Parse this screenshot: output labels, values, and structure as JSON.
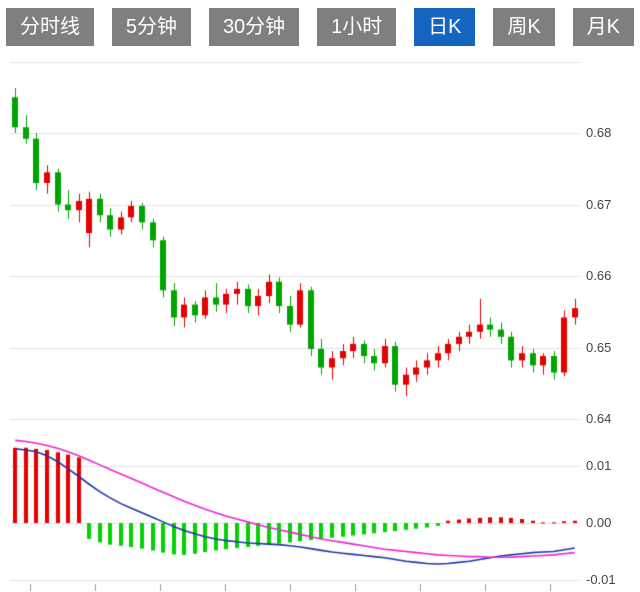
{
  "tabs": {
    "items": [
      {
        "label": "分时线"
      },
      {
        "label": "5分钟"
      },
      {
        "label": "30分钟"
      },
      {
        "label": "1小时"
      },
      {
        "label": "日K"
      },
      {
        "label": "周K"
      },
      {
        "label": "月K"
      }
    ],
    "active_index": 4,
    "active_color": "#1565c0",
    "inactive_color": "#7f7f7f",
    "text_color": "#ffffff"
  },
  "chart_data": {
    "type": "candlestick",
    "title": "",
    "xlabel": "",
    "ylabel": "",
    "legend": "none",
    "grid": "on",
    "price_axis": {
      "labels": [
        "0.68",
        "0.67",
        "0.66",
        "0.65",
        "0.64"
      ],
      "tick_values": [
        0.68,
        0.67,
        0.66,
        0.65,
        0.64
      ],
      "grid_values": [
        0.69,
        0.68,
        0.67,
        0.66,
        0.65,
        0.64
      ],
      "min": 0.642,
      "max": 0.69
    },
    "macd_axis": {
      "labels": [
        "0.01",
        "0.00",
        "-0.01"
      ],
      "tick_values": [
        0.01,
        0.0,
        -0.01
      ],
      "grid_values": [
        0.01,
        0.0,
        -0.01
      ],
      "min": -0.012,
      "max": 0.016
    },
    "x_axis": {
      "tick_count": 9,
      "labels": []
    },
    "colors": {
      "up": "#e60000",
      "down": "#00a400",
      "macd_up": "#e60000",
      "macd_down": "#00d300",
      "dif": "#2433a6",
      "dea": "#ea25d5",
      "grid": "#e2e2e2",
      "axis_text": "#444444",
      "tick": "#999999"
    },
    "candles": [
      [
        0.685,
        0.6863,
        0.68,
        0.6808
      ],
      [
        0.6808,
        0.6825,
        0.6785,
        0.6792
      ],
      [
        0.6792,
        0.68,
        0.672,
        0.673
      ],
      [
        0.673,
        0.6755,
        0.6715,
        0.6745
      ],
      [
        0.6745,
        0.675,
        0.669,
        0.67
      ],
      [
        0.67,
        0.672,
        0.668,
        0.6692
      ],
      [
        0.6692,
        0.6715,
        0.6675,
        0.6705
      ],
      [
        0.666,
        0.6718,
        0.664,
        0.6708
      ],
      [
        0.6708,
        0.6715,
        0.6675,
        0.6685
      ],
      [
        0.6685,
        0.6695,
        0.6655,
        0.6665
      ],
      [
        0.6665,
        0.669,
        0.6658,
        0.6682
      ],
      [
        0.6682,
        0.6705,
        0.6675,
        0.6698
      ],
      [
        0.6698,
        0.6702,
        0.6665,
        0.6675
      ],
      [
        0.6675,
        0.668,
        0.664,
        0.665
      ],
      [
        0.665,
        0.6655,
        0.657,
        0.658
      ],
      [
        0.658,
        0.659,
        0.653,
        0.6542
      ],
      [
        0.6542,
        0.657,
        0.6528,
        0.656
      ],
      [
        0.656,
        0.6565,
        0.6535,
        0.6545
      ],
      [
        0.6545,
        0.658,
        0.654,
        0.657
      ],
      [
        0.657,
        0.659,
        0.655,
        0.656
      ],
      [
        0.656,
        0.6582,
        0.6548,
        0.6575
      ],
      [
        0.6575,
        0.6592,
        0.656,
        0.6582
      ],
      [
        0.6582,
        0.6588,
        0.6548,
        0.6558
      ],
      [
        0.6558,
        0.6582,
        0.6545,
        0.6572
      ],
      [
        0.6572,
        0.6602,
        0.6562,
        0.6592
      ],
      [
        0.6592,
        0.6598,
        0.6548,
        0.6558
      ],
      [
        0.6558,
        0.6572,
        0.6522,
        0.6532
      ],
      [
        0.6532,
        0.659,
        0.6528,
        0.658
      ],
      [
        0.658,
        0.6585,
        0.6488,
        0.6498
      ],
      [
        0.6498,
        0.6512,
        0.6462,
        0.6472
      ],
      [
        0.6472,
        0.6495,
        0.6455,
        0.6485
      ],
      [
        0.6485,
        0.6505,
        0.6475,
        0.6495
      ],
      [
        0.6495,
        0.6515,
        0.6485,
        0.6505
      ],
      [
        0.6505,
        0.651,
        0.6478,
        0.6488
      ],
      [
        0.6488,
        0.6498,
        0.6468,
        0.6478
      ],
      [
        0.6478,
        0.6512,
        0.6472,
        0.6502
      ],
      [
        0.6502,
        0.6508,
        0.6438,
        0.6448
      ],
      [
        0.6448,
        0.6472,
        0.6432,
        0.6462
      ],
      [
        0.6462,
        0.6482,
        0.6452,
        0.6472
      ],
      [
        0.6472,
        0.6492,
        0.6462,
        0.6482
      ],
      [
        0.6482,
        0.6502,
        0.6472,
        0.6492
      ],
      [
        0.6492,
        0.6512,
        0.6482,
        0.6505
      ],
      [
        0.6505,
        0.6522,
        0.6495,
        0.6515
      ],
      [
        0.6515,
        0.6532,
        0.6505,
        0.6522
      ],
      [
        0.6522,
        0.6568,
        0.6512,
        0.6532
      ],
      [
        0.6532,
        0.6542,
        0.6515,
        0.6525
      ],
      [
        0.6525,
        0.6535,
        0.6505,
        0.6515
      ],
      [
        0.6515,
        0.6522,
        0.6472,
        0.6482
      ],
      [
        0.6482,
        0.6502,
        0.6472,
        0.6492
      ],
      [
        0.6492,
        0.6498,
        0.6465,
        0.6475
      ],
      [
        0.6475,
        0.6492,
        0.6462,
        0.6488
      ],
      [
        0.6488,
        0.6495,
        0.6455,
        0.6465
      ],
      [
        0.6465,
        0.6552,
        0.646,
        0.6542
      ],
      [
        0.6542,
        0.6568,
        0.6532,
        0.6555
      ]
    ],
    "macd": {
      "histogram": [
        0.0132,
        0.0132,
        0.013,
        0.0128,
        0.0124,
        0.012,
        0.0115,
        -0.0028,
        -0.0034,
        -0.0038,
        -0.004,
        -0.0042,
        -0.0045,
        -0.0048,
        -0.0052,
        -0.0055,
        -0.0056,
        -0.0054,
        -0.0051,
        -0.0048,
        -0.0046,
        -0.0044,
        -0.0042,
        -0.004,
        -0.0038,
        -0.0036,
        -0.0034,
        -0.0032,
        -0.003,
        -0.0028,
        -0.0026,
        -0.0024,
        -0.0022,
        -0.002,
        -0.0018,
        -0.0016,
        -0.0014,
        -0.0012,
        -0.001,
        -0.0008,
        -0.0005,
        0.0004,
        0.0006,
        0.0008,
        0.0009,
        0.001,
        0.001,
        0.0009,
        0.0007,
        0.0004,
        0.0001,
        0.0001,
        0.0003,
        0.0004
      ],
      "dif": [
        0.013,
        0.0128,
        0.0125,
        0.0118,
        0.0108,
        0.0095,
        0.0082,
        0.0068,
        0.0055,
        0.0044,
        0.0034,
        0.0026,
        0.0018,
        0.001,
        0.0002,
        -0.0006,
        -0.0013,
        -0.0019,
        -0.0024,
        -0.0028,
        -0.0031,
        -0.0033,
        -0.0035,
        -0.0036,
        -0.0037,
        -0.0038,
        -0.004,
        -0.0042,
        -0.0045,
        -0.0048,
        -0.0051,
        -0.0053,
        -0.0055,
        -0.0057,
        -0.0059,
        -0.0061,
        -0.0064,
        -0.0067,
        -0.0069,
        -0.0071,
        -0.0072,
        -0.0071,
        -0.0069,
        -0.0067,
        -0.0064,
        -0.0061,
        -0.0058,
        -0.0056,
        -0.0054,
        -0.0052,
        -0.0051,
        -0.005,
        -0.0047,
        -0.0044
      ],
      "dea": [
        0.0145,
        0.0143,
        0.014,
        0.0136,
        0.0131,
        0.0125,
        0.0118,
        0.011,
        0.0102,
        0.0094,
        0.0086,
        0.0078,
        0.007,
        0.0062,
        0.0054,
        0.0046,
        0.0038,
        0.0031,
        0.0024,
        0.0018,
        0.0012,
        0.0007,
        0.0002,
        -0.0003,
        -0.0008,
        -0.0012,
        -0.0016,
        -0.002,
        -0.0024,
        -0.0028,
        -0.0031,
        -0.0034,
        -0.0037,
        -0.004,
        -0.0043,
        -0.0046,
        -0.0048,
        -0.005,
        -0.0052,
        -0.0054,
        -0.0056,
        -0.0057,
        -0.0058,
        -0.0059,
        -0.0059,
        -0.006,
        -0.006,
        -0.006,
        -0.0059,
        -0.0058,
        -0.0057,
        -0.0056,
        -0.0054,
        -0.0052
      ]
    }
  }
}
